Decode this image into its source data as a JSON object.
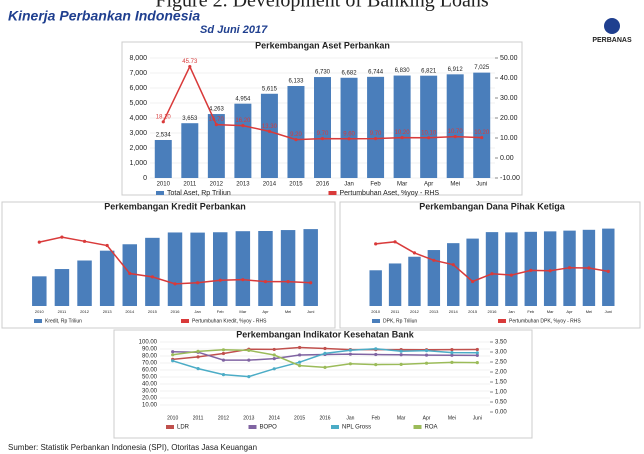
{
  "header": {
    "figure": "Figure 2. Development of Banking Loans",
    "title": "Kinerja Perbankan Indonesia",
    "subtitle": "Sd Juni 2017",
    "logo": "PERBANAS"
  },
  "source": "Sumber: Statistik Perbankan Indonesia (SPI), Otoritas Jasa Keuangan",
  "chart_data": [
    {
      "type": "bar",
      "title": "Perkembangan Aset Perbankan",
      "categories": [
        "2010",
        "2011",
        "2012",
        "2013",
        "2014",
        "2015",
        "2016",
        "Jan",
        "Feb",
        "Mar",
        "Apr",
        "Mei",
        "Juni"
      ],
      "series": [
        {
          "name": "Total Aset, Rp Triliun",
          "color": "#4a7ebb",
          "type": "bar",
          "values": [
            2534,
            3653,
            4263,
            4954,
            5615,
            6133,
            6730,
            6682,
            6744,
            6830,
            6821,
            6912,
            7025
          ],
          "value_labels": [
            "2,534",
            "3,653",
            "4,263",
            "4,954",
            "5,615",
            "6,133",
            "6,730",
            "6,682",
            "6,744",
            "6,830",
            "6,821",
            "6,912",
            "7,025"
          ]
        },
        {
          "name": "Pertumbuhan Aset, %yoy - RHS",
          "color": "#d93a3a",
          "type": "line",
          "axis": "y2",
          "values": [
            18.1,
            45.73,
            16.7,
            16.2,
            13.3,
            9.2,
            9.7,
            9.6,
            9.7,
            10.2,
            10.1,
            10.7,
            10.2
          ],
          "value_labels": [
            "18.10",
            "45.73",
            "16.70",
            "16.20",
            "13.30",
            "9.20",
            "9.70",
            "9.60",
            "9.70",
            "10.20",
            "10.10",
            "10.70",
            "10.20"
          ]
        }
      ],
      "ylim": [
        0,
        8000
      ],
      "yticks": [
        0,
        {
          "value": 1000,
          "label": "1,000"
        },
        {
          "value": 2000,
          "label": "2,000"
        },
        {
          "value": 3000,
          "label": "3,000"
        },
        {
          "value": 4000,
          "label": "4,000"
        },
        {
          "value": 5000,
          "label": "5,000"
        },
        {
          "value": 6000,
          "label": "6,000"
        },
        {
          "value": 7000,
          "label": "7,000"
        },
        {
          "value": 8000,
          "label": "8,000"
        }
      ],
      "y2lim": [
        -10,
        50
      ],
      "y2ticks": [
        {
          "value": -10,
          "label": "-10.00"
        },
        {
          "value": 0,
          "label": "0.00"
        },
        {
          "value": 10,
          "label": "10.00"
        },
        {
          "value": 20,
          "label": "20.00"
        },
        {
          "value": 30,
          "label": "30.00"
        },
        {
          "value": 40,
          "label": "40.00"
        },
        {
          "value": 50,
          "label": "50.00"
        }
      ]
    },
    {
      "type": "bar",
      "title": "Perkembangan Kredit Perbankan",
      "categories": [
        "2010",
        "2011",
        "2012",
        "2013",
        "2014",
        "2015",
        "2016",
        "Jan",
        "Feb",
        "Mar",
        "Apr",
        "Mei",
        "Juni"
      ],
      "series": [
        {
          "name": "Kredit, Rp Triliun",
          "color": "#4a7ebb",
          "type": "bar",
          "values": [
            1766,
            2200,
            2708,
            3293,
            3675,
            4058,
            4377,
            4369,
            4390,
            4453,
            4464,
            4520,
            4577
          ]
        },
        {
          "name": "Pertumbuhan Kredit, %yoy - RHS",
          "color": "#d93a3a",
          "type": "line",
          "axis": "y2",
          "values": [
            22.8,
            24.6,
            23.1,
            21.6,
            11.6,
            10.4,
            7.9,
            8.3,
            9.2,
            9.4,
            8.7,
            8.7,
            8.3
          ]
        }
      ],
      "ylim": [
        0,
        5000
      ],
      "y2lim": [
        0,
        30
      ]
    },
    {
      "type": "bar",
      "title": "Perkembangan Dana Pihak Ketiga",
      "categories": [
        "2010",
        "2011",
        "2012",
        "2013",
        "2014",
        "2015",
        "2016",
        "Jan",
        "Feb",
        "Mar",
        "Apr",
        "Mei",
        "Juni"
      ],
      "series": [
        {
          "name": "DPK, Rp Triliun",
          "color": "#4a7ebb",
          "type": "bar",
          "values": [
            2339,
            2785,
            3226,
            3664,
            4115,
            4413,
            4837,
            4821,
            4857,
            4887,
            4935,
            4989,
            5067
          ]
        },
        {
          "name": "Pertumbuhan DPK, %yoy - RHS",
          "color": "#d93a3a",
          "type": "line",
          "axis": "y2",
          "values": [
            18.5,
            19.1,
            15.8,
            13.6,
            12.3,
            7.3,
            9.6,
            9.2,
            10.6,
            10.5,
            11.4,
            11.3,
            10.3
          ]
        }
      ],
      "ylim": [
        0,
        5500
      ],
      "y2lim": [
        0,
        25
      ]
    },
    {
      "type": "line",
      "title": "Perkembangan Indikator Kesehatan Bank",
      "categories": [
        "2010",
        "2011",
        "2012",
        "2013",
        "2014",
        "2015",
        "2016",
        "Jan",
        "Feb",
        "Mar",
        "Apr",
        "Mei",
        "Juni"
      ],
      "series": [
        {
          "name": "LDR",
          "color": "#c0504d",
          "type": "line",
          "values": [
            75.2,
            78.8,
            83.6,
            89.7,
            89.4,
            92.1,
            90.7,
            89.1,
            89.1,
            89.1,
            89.0,
            89.1,
            89.3
          ]
        },
        {
          "name": "BOPO",
          "color": "#8064a2",
          "type": "line",
          "values": [
            86.1,
            85.4,
            74.1,
            74.1,
            76.3,
            81.5,
            82.2,
            82.6,
            82.1,
            81.8,
            81.3,
            81.1,
            80.9
          ]
        },
        {
          "name": "NPL Gross",
          "color": "#4bacc6",
          "type": "line",
          "axis": "y2",
          "values": [
            2.56,
            2.17,
            1.87,
            1.77,
            2.16,
            2.49,
            2.93,
            3.09,
            3.16,
            3.04,
            3.07,
            2.97,
            2.96
          ]
        },
        {
          "name": "ROA",
          "color": "#9bbb59",
          "type": "line",
          "axis": "y2",
          "values": [
            2.86,
            3.03,
            3.11,
            3.08,
            2.85,
            2.32,
            2.23,
            2.41,
            2.37,
            2.38,
            2.44,
            2.48,
            2.47
          ]
        }
      ],
      "ylim": [
        0,
        100
      ],
      "yticks": [
        {
          "value": 10,
          "label": "10.00"
        },
        {
          "value": 20,
          "label": "20.00"
        },
        {
          "value": 30,
          "label": "30.00"
        },
        {
          "value": 40,
          "label": "40.00"
        },
        {
          "value": 50,
          "label": "50.00"
        },
        {
          "value": 60,
          "label": "60.00"
        },
        {
          "value": 70,
          "label": "70.00"
        },
        {
          "value": 80,
          "label": "80.00"
        },
        {
          "value": 90,
          "label": "90.00"
        },
        {
          "value": 100,
          "label": "100.00"
        }
      ],
      "y2lim": [
        0,
        3.5
      ],
      "y2ticks": [
        {
          "value": 0,
          "label": "0.00"
        },
        {
          "value": 0.5,
          "label": "0.50"
        },
        {
          "value": 1,
          "label": "1.00"
        },
        {
          "value": 1.5,
          "label": "1.50"
        },
        {
          "value": 2,
          "label": "2.00"
        },
        {
          "value": 2.5,
          "label": "2.50"
        },
        {
          "value": 3,
          "label": "3.00"
        },
        {
          "value": 3.5,
          "label": "3.50"
        }
      ]
    }
  ]
}
